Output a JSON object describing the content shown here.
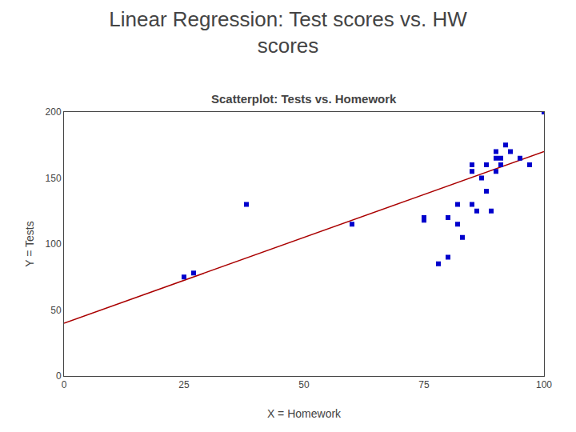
{
  "chart_data": {
    "type": "scatter",
    "title": "Linear Regression: Test scores vs. HW\nscores",
    "subtitle": "Scatterplot: Tests vs. Homework",
    "x_label": "X = Homework",
    "y_label": "Y = Tests",
    "xlim": [
      0,
      100
    ],
    "ylim": [
      0,
      200
    ],
    "xticks": [
      0,
      25,
      50,
      75,
      100
    ],
    "yticks": [
      0,
      50,
      100,
      150,
      200
    ],
    "grid": false,
    "series": [
      {
        "type": "scatter",
        "marker": "square",
        "color": "#0000cc",
        "x": [
          25,
          27,
          38,
          60,
          75,
          75,
          78,
          80,
          80,
          82,
          82,
          83,
          85,
          85,
          85,
          86,
          87,
          88,
          88,
          89,
          90,
          90,
          90,
          91,
          91,
          92,
          93,
          95,
          97,
          100
        ],
        "values": [
          75,
          78,
          130,
          115,
          120,
          118,
          85,
          90,
          120,
          115,
          130,
          105,
          155,
          160,
          130,
          125,
          150,
          140,
          160,
          125,
          155,
          170,
          165,
          160,
          165,
          175,
          170,
          165,
          160,
          200
        ]
      },
      {
        "type": "line",
        "line_style": "solid",
        "color": "#aa0000",
        "x": [
          0,
          100
        ],
        "values": [
          40,
          170
        ]
      }
    ]
  }
}
